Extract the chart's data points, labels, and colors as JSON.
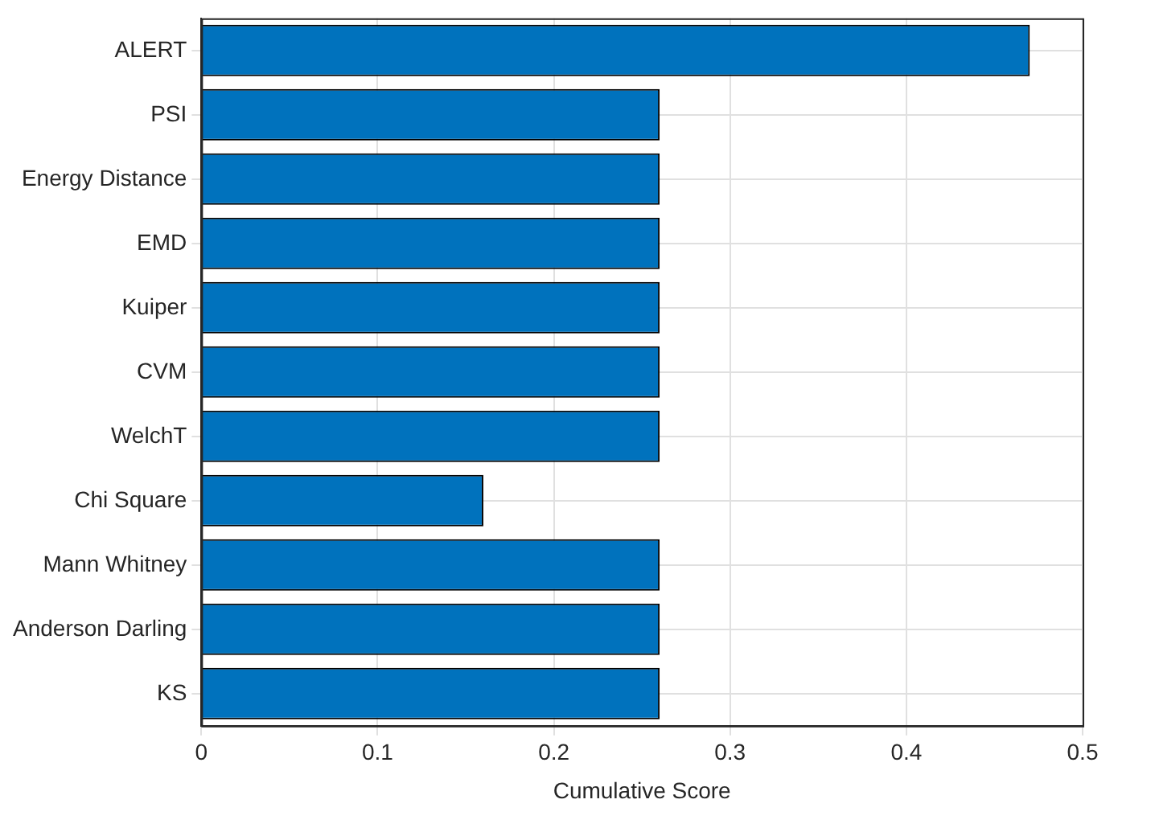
{
  "chart_data": {
    "type": "bar",
    "orientation": "horizontal",
    "xlabel": "Cumulative Score",
    "categories": [
      "ALERT",
      "PSI",
      "Energy Distance",
      "EMD",
      "Kuiper",
      "CVM",
      "WelchT",
      "Chi Square",
      "Mann Whitney",
      "Anderson Darling",
      "KS"
    ],
    "values": [
      0.47,
      0.26,
      0.26,
      0.26,
      0.26,
      0.26,
      0.26,
      0.16,
      0.26,
      0.26,
      0.26
    ],
    "color": "#0072bd",
    "xlim": [
      0,
      0.5
    ],
    "xticks": [
      0,
      0.1,
      0.2,
      0.3,
      0.4,
      0.5
    ],
    "grid": true
  }
}
